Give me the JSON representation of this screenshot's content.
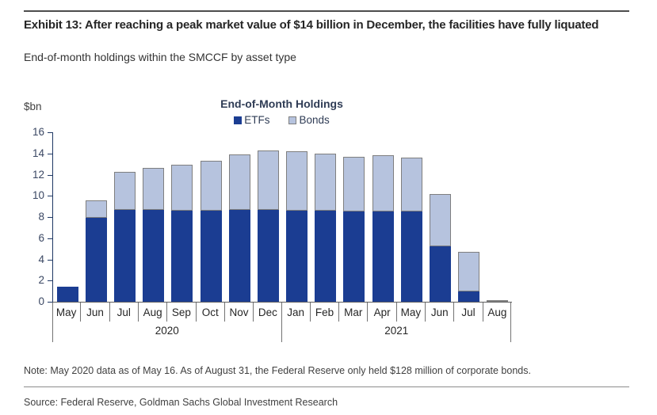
{
  "header": {
    "title": "Exhibit 13: After reaching a peak market value of $14 billion in December, the facilities have fully liquated",
    "subtitle": "End-of-month holdings within the SMCCF by asset type"
  },
  "chart_data": {
    "type": "bar",
    "stacked": true,
    "title": "End-of-Month Holdings",
    "unit_label": "$bn",
    "ylim": [
      0,
      16
    ],
    "ytick_step": 2,
    "grid": false,
    "legend_position": "top",
    "categories": [
      "May",
      "Jun",
      "Jul",
      "Aug",
      "Sep",
      "Oct",
      "Nov",
      "Dec",
      "Jan",
      "Feb",
      "Mar",
      "Apr",
      "May",
      "Jun",
      "Jul",
      "Aug"
    ],
    "year_groups": [
      {
        "label": "2020",
        "span": 8
      },
      {
        "label": "2021",
        "span": 8
      }
    ],
    "series": [
      {
        "name": "ETFs",
        "color": "#1b3d92",
        "values": [
          1.4,
          7.9,
          8.7,
          8.7,
          8.6,
          8.6,
          8.7,
          8.7,
          8.6,
          8.6,
          8.5,
          8.5,
          8.5,
          5.2,
          1.0,
          0
        ]
      },
      {
        "name": "Bonds",
        "color": "#b6c3de",
        "values": [
          0,
          1.7,
          3.6,
          3.9,
          4.3,
          4.7,
          5.2,
          5.6,
          5.6,
          5.4,
          5.2,
          5.3,
          5.1,
          5.0,
          3.7,
          0.13
        ]
      }
    ],
    "totals": [
      1.4,
      9.6,
      12.3,
      12.6,
      12.9,
      13.3,
      13.9,
      14.3,
      14.2,
      14.0,
      13.7,
      13.8,
      13.6,
      10.2,
      4.7,
      0.13
    ]
  },
  "footer": {
    "note": "Note: May 2020 data as of May 16. As of August 31, the Federal Reserve only held $128 million of corporate bonds.",
    "source": "Source: Federal Reserve, Goldman Sachs Global Investment Research"
  }
}
